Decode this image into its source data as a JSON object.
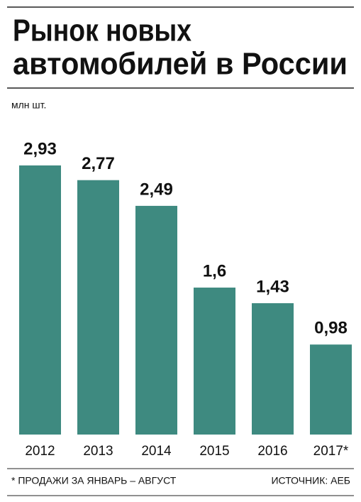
{
  "chart_data": {
    "type": "bar",
    "title": [
      "Рынок новых",
      "автомобилей в России"
    ],
    "y_label": "млн шт.",
    "categories": [
      "2012",
      "2013",
      "2014",
      "2015",
      "2016",
      "2017*"
    ],
    "values": [
      2.93,
      2.77,
      2.49,
      1.6,
      1.43,
      0.98
    ],
    "value_labels": [
      "2,93",
      "2,77",
      "2,49",
      "1,6",
      "1,43",
      "0,98"
    ],
    "color": "#3e8a80",
    "note": "* ПРОДАЖИ ЗА ЯНВАРЬ – АВГУСТ",
    "source": "ИСТОЧНИК: АЕБ"
  }
}
